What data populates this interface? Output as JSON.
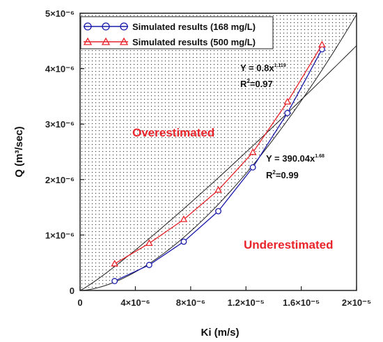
{
  "chart_data": {
    "type": "line",
    "xlabel": "Ki (m/s)",
    "ylabel": "Q (m³/sec)",
    "xlim": [
      0,
      2e-05
    ],
    "ylim": [
      0,
      5e-06
    ],
    "x_ticks": [
      {
        "value": 0,
        "label": "0"
      },
      {
        "value": 4e-06,
        "label": "4×10⁻⁶"
      },
      {
        "value": 8e-06,
        "label": "8×10⁻⁶"
      },
      {
        "value": 1.2e-05,
        "label": "1.2×10⁻⁵"
      },
      {
        "value": 1.6e-05,
        "label": "1.6×10⁻⁵"
      },
      {
        "value": 2e-05,
        "label": "2×10⁻⁵"
      }
    ],
    "y_ticks": [
      {
        "value": 0,
        "label": "0"
      },
      {
        "value": 1e-06,
        "label": "1×10⁻⁶"
      },
      {
        "value": 2e-06,
        "label": "2×10⁻⁶"
      },
      {
        "value": 3e-06,
        "label": "3×10⁻⁶"
      },
      {
        "value": 4e-06,
        "label": "4×10⁻⁶"
      },
      {
        "value": 5e-06,
        "label": "5×10⁻⁶"
      }
    ],
    "series": [
      {
        "name": "Simulated results (168 mg/L)",
        "marker": "circle",
        "color": "#1a1aaa",
        "x": [
          2.5e-06,
          5e-06,
          7.5e-06,
          1e-05,
          1.25e-05,
          1.5e-05,
          1.75e-05
        ],
        "y": [
          1.7e-07,
          4.6e-07,
          8.8e-07,
          1.43e-06,
          2.22e-06,
          3.2e-06,
          4.35e-06
        ]
      },
      {
        "name": "Simulated results (500 mg/L)",
        "marker": "triangle",
        "color": "#e8242a",
        "x": [
          2.5e-06,
          5e-06,
          7.5e-06,
          1e-05,
          1.25e-05,
          1.5e-05,
          1.75e-05
        ],
        "y": [
          4.8e-07,
          8.5e-07,
          1.28e-06,
          1.81e-06,
          2.49e-06,
          3.4e-06,
          4.43e-06
        ]
      }
    ],
    "fits": [
      {
        "a": 0.8,
        "b": 1.119
      },
      {
        "a": 390.04,
        "b": 1.68
      }
    ],
    "legend_position": "top-left",
    "grid": false
  },
  "equations": [
    {
      "text": "Y = 0.8x",
      "exp": "1.119",
      "r2_pre": "R",
      "r2_sup": "2",
      "r2_post": "=0.97"
    },
    {
      "text": "Y = 390.04x",
      "exp": "1.68",
      "r2_pre": "R",
      "r2_sup": "2",
      "r2_post": "=0.99"
    }
  ],
  "regions": {
    "over": "Overestimated",
    "under": "Underestimated"
  },
  "colors": {
    "series1": "#1a1aaa",
    "series2": "#e8242a",
    "region_label": "#e8242a"
  }
}
